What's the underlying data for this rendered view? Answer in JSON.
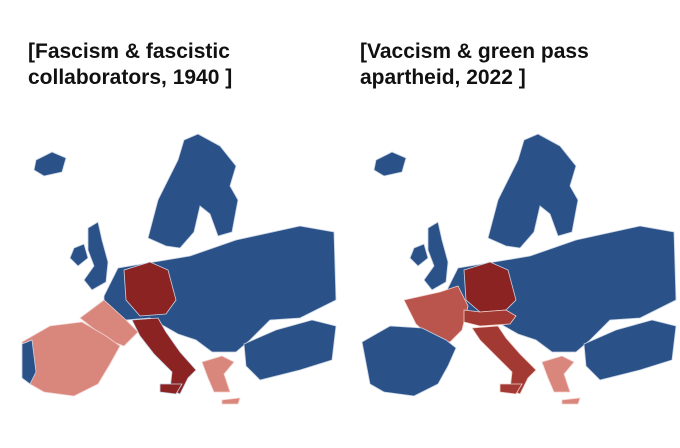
{
  "panels": [
    {
      "title_lines": [
        "[Fascism & fascistic",
        "collaborators, 1940 ]"
      ]
    },
    {
      "title_lines": [
        "[Vaccism & green pass",
        "apartheid, 2022 ]"
      ]
    }
  ]
}
